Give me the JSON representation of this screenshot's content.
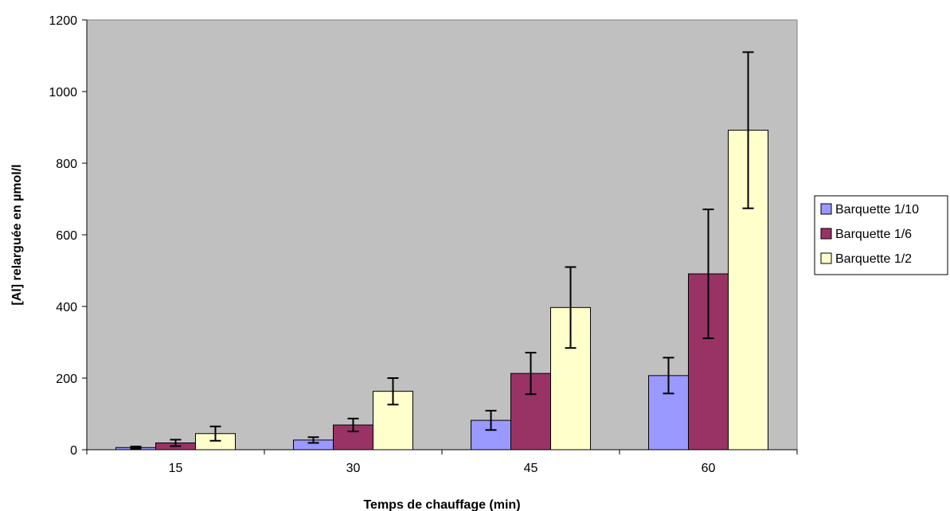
{
  "chart_data": {
    "type": "bar",
    "categories": [
      "15",
      "30",
      "45",
      "60"
    ],
    "series": [
      {
        "name": "Barquette 1/10",
        "color": "#9999ff",
        "values": [
          6,
          27,
          82,
          207
        ],
        "error": [
          3,
          8,
          27,
          50
        ]
      },
      {
        "name": "Barquette 1/6",
        "color": "#993366",
        "values": [
          19,
          69,
          213,
          491
        ],
        "error": [
          9,
          18,
          58,
          180
        ]
      },
      {
        "name": "Barquette 1/2",
        "color": "#ffffcc",
        "values": [
          45,
          163,
          397,
          892
        ],
        "error": [
          20,
          37,
          113,
          218
        ]
      }
    ],
    "xlabel": "Temps de chauffage (min)",
    "ylabel": "[Al] relarguée en µmol/l",
    "ylim": [
      0,
      1200
    ],
    "yticks": [
      0,
      200,
      400,
      600,
      800,
      1000,
      1200
    ],
    "grid": false,
    "plot_background": "#c0c0c0",
    "legend_position": "right"
  }
}
